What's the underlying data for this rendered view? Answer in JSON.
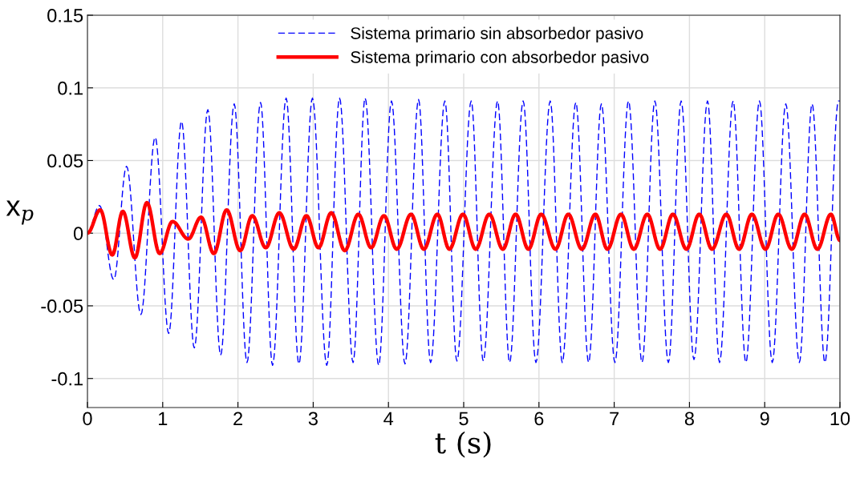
{
  "chart_data": {
    "type": "line",
    "xlabel": "t (s)",
    "ylabel": "x$_{p}$",
    "xlim": [
      0,
      10
    ],
    "xticks": [
      0,
      1,
      2,
      3,
      4,
      5,
      6,
      7,
      8,
      9,
      10
    ],
    "ylim": [
      -0.12,
      0.15
    ],
    "yticks": [
      -0.1,
      -0.05,
      0,
      0.05,
      0.1,
      0.15
    ],
    "grid": true,
    "legend": "top",
    "series": [
      {
        "name": "Sistema primario sin absorbedor pasivo",
        "color": "#0000ff",
        "line_style": "dashed",
        "x": [
          0,
          0.16,
          0.35,
          0.52,
          0.71,
          0.9,
          1.08,
          1.25,
          1.42,
          1.6,
          1.77,
          1.95,
          2.12,
          2.3,
          2.46,
          2.64,
          2.81,
          2.99,
          3.18,
          3.35,
          3.53,
          3.69,
          3.87,
          4.04,
          4.22,
          4.4,
          4.56,
          4.75,
          4.91,
          5.1,
          5.26,
          5.45,
          5.61,
          5.79,
          5.96,
          6.15,
          6.31,
          6.49,
          6.66,
          6.83,
          7.01,
          7.19,
          7.37,
          7.54,
          7.72,
          7.89,
          8.06,
          8.24,
          8.4,
          8.58,
          8.75,
          8.93,
          9.1,
          9.28,
          9.46,
          9.63,
          9.8,
          9.98,
          10
        ],
        "values": [
          0,
          0.019,
          -0.032,
          0.046,
          -0.056,
          0.066,
          -0.069,
          0.077,
          -0.079,
          0.085,
          -0.084,
          0.089,
          -0.089,
          0.09,
          -0.091,
          0.093,
          -0.09,
          0.093,
          -0.091,
          0.093,
          -0.089,
          0.093,
          -0.091,
          0.091,
          -0.09,
          0.092,
          -0.089,
          0.091,
          -0.088,
          0.091,
          -0.088,
          0.091,
          -0.089,
          0.091,
          -0.089,
          0.091,
          -0.089,
          0.09,
          -0.089,
          0.089,
          -0.089,
          0.091,
          -0.089,
          0.091,
          -0.089,
          0.091,
          -0.087,
          0.091,
          -0.089,
          0.091,
          -0.089,
          0.091,
          -0.089,
          0.089,
          -0.089,
          0.089,
          -0.089,
          0.091,
          0.091
        ]
      },
      {
        "name": "Sistema primario con absorbedor pasivo",
        "color": "#ff0000",
        "line_style": "solid",
        "x": [
          0,
          0.17,
          0.33,
          0.47,
          0.63,
          0.79,
          0.96,
          1.13,
          1.34,
          1.51,
          1.68,
          1.85,
          2.03,
          2.19,
          2.37,
          2.55,
          2.74,
          2.91,
          3.07,
          3.24,
          3.42,
          3.6,
          3.77,
          3.94,
          4.11,
          4.3,
          4.47,
          4.65,
          4.81,
          4.99,
          5.16,
          5.34,
          5.52,
          5.69,
          5.86,
          6.03,
          6.22,
          6.39,
          6.57,
          6.75,
          6.91,
          7.09,
          7.26,
          7.44,
          7.61,
          7.78,
          7.96,
          8.13,
          8.3,
          8.49,
          8.66,
          8.83,
          9.01,
          9.18,
          9.36,
          9.53,
          9.7,
          9.88,
          10
        ],
        "values": [
          0,
          0.016,
          -0.015,
          0.015,
          -0.017,
          0.021,
          -0.014,
          0.008,
          -0.004,
          0.011,
          -0.014,
          0.016,
          -0.012,
          0.012,
          -0.01,
          0.014,
          -0.011,
          0.012,
          -0.01,
          0.014,
          -0.012,
          0.013,
          -0.01,
          0.012,
          -0.011,
          0.013,
          -0.011,
          0.013,
          -0.011,
          0.013,
          -0.011,
          0.013,
          -0.011,
          0.013,
          -0.011,
          0.013,
          -0.011,
          0.013,
          -0.011,
          0.013,
          -0.011,
          0.013,
          -0.011,
          0.013,
          -0.011,
          0.013,
          -0.011,
          0.013,
          -0.011,
          0.013,
          -0.011,
          0.013,
          -0.011,
          0.013,
          -0.011,
          0.013,
          -0.011,
          0.013,
          -0.005
        ]
      }
    ]
  }
}
